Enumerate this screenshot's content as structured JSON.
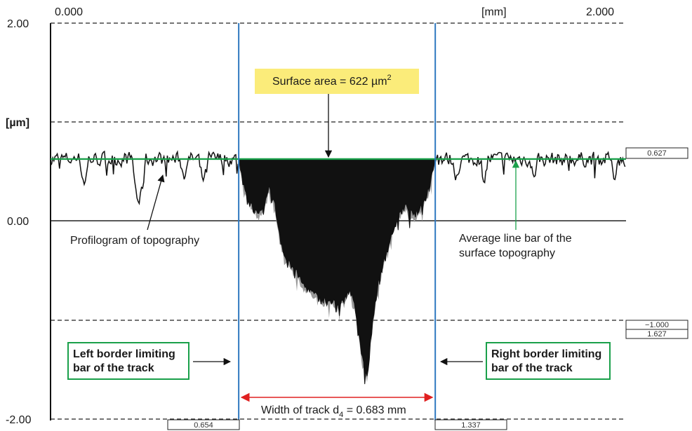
{
  "chart_data": {
    "type": "line",
    "x_unit": "[mm]",
    "y_unit": "[µm]",
    "xlim": [
      0.0,
      2.0
    ],
    "ylim": [
      -2.0,
      2.0
    ],
    "x_tick_labels": [
      "0.000",
      "2.000"
    ],
    "y_tick_labels": [
      "2.00",
      "0.00",
      "-2.00"
    ],
    "grid": "dashed horizontal lines at 2.0, 1.0, -1.0 and -2.0 µm",
    "average_line_um": 0.627,
    "left_border_mm": 0.654,
    "right_border_mm": 1.337,
    "readouts": {
      "average": "0.627",
      "lower_level": "−1.000",
      "depth": "1.627",
      "left_border": "0.654",
      "right_border": "1.337"
    },
    "annotations": {
      "surface_area_prefix": "Surface area = 622 µm",
      "surface_area_sup": "2",
      "profilogram": "Profilogram of topography",
      "average_line_1": "Average line bar of the",
      "average_line_2": "surface topography",
      "left_border_1": "Left border limiting",
      "left_border_2": "bar of the track",
      "right_border_1": "Right border limiting",
      "right_border_2": "bar of the track",
      "width_prefix": "Width of track d",
      "width_sub": "4",
      "width_suffix": " = 0.683 mm"
    },
    "colors": {
      "profile": "#111111",
      "average_line": "#1aa04a",
      "border_lines": "#2e78c0",
      "width_arrow": "#e02020",
      "highlight": "#fbec7a",
      "box_border": "#1aa04a"
    },
    "track_profile": {
      "x_mm": [
        0.654,
        0.66,
        0.68,
        0.7,
        0.72,
        0.74,
        0.76,
        0.78,
        0.8,
        0.82,
        0.84,
        0.86,
        0.88,
        0.9,
        0.92,
        0.94,
        0.96,
        0.98,
        1.0,
        1.02,
        1.04,
        1.06,
        1.08,
        1.1,
        1.12,
        1.14,
        1.16,
        1.18,
        1.2,
        1.22,
        1.24,
        1.26,
        1.28,
        1.3,
        1.32,
        1.337
      ],
      "y_um": [
        0.627,
        0.5,
        0.3,
        0.15,
        0.05,
        0.1,
        0.35,
        0.15,
        -0.2,
        -0.4,
        -0.45,
        -0.55,
        -0.65,
        -0.7,
        -0.75,
        -0.8,
        -0.78,
        -0.82,
        -0.85,
        -0.8,
        -0.7,
        -0.9,
        -1.3,
        -1.6,
        -1.0,
        -0.6,
        -0.4,
        -0.2,
        0.0,
        0.1,
        0.15,
        0.05,
        0.1,
        0.2,
        0.4,
        0.627
      ]
    }
  }
}
